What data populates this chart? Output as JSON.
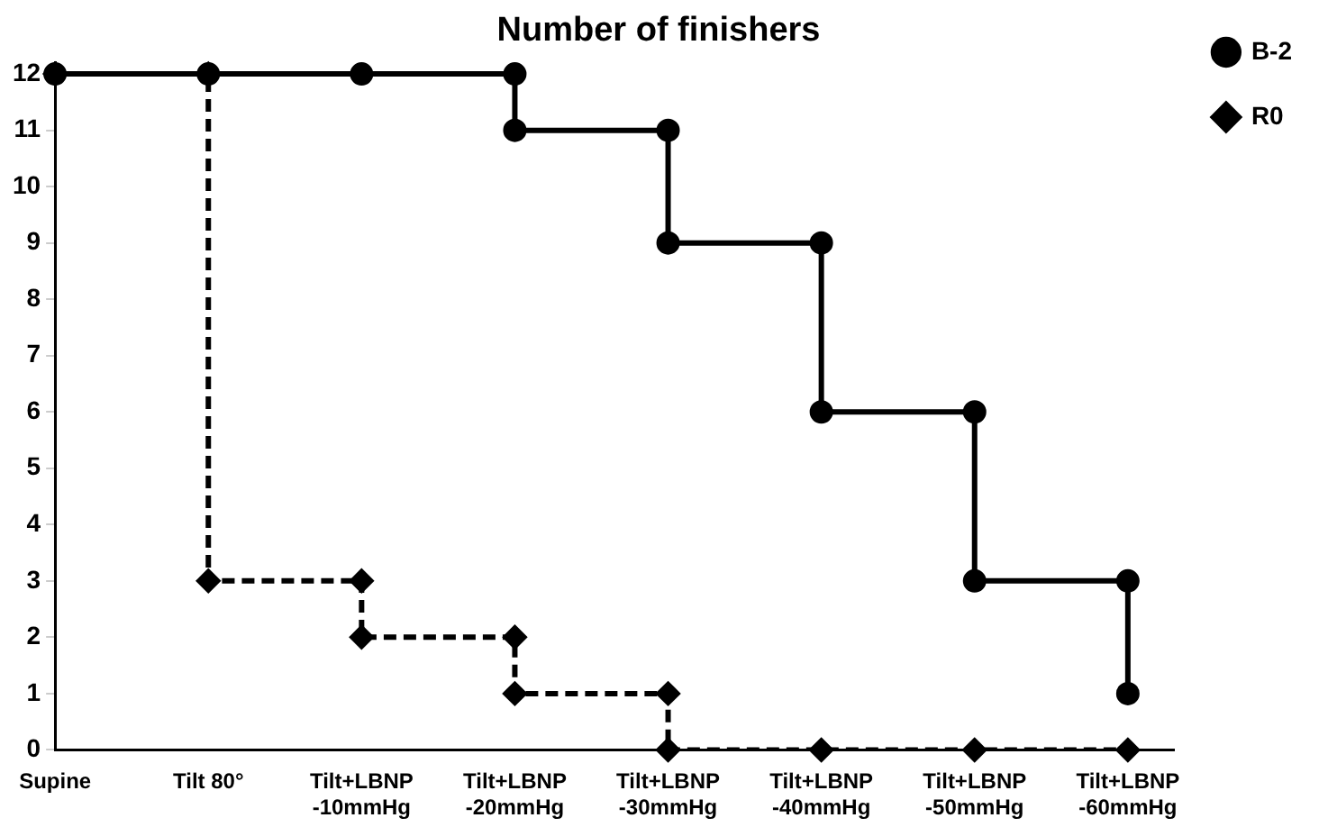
{
  "chart_data": {
    "type": "line",
    "title": "Number of finishers",
    "categories": [
      "Supine",
      "Tilt 80°",
      "Tilt+LBNP\n-10mmHg",
      "Tilt+LBNP\n-20mmHg",
      "Tilt+LBNP\n-30mmHg",
      "Tilt+LBNP\n-40mmHg",
      "Tilt+LBNP\n-50mmHg",
      "Tilt+LBNP\n-60mmHg"
    ],
    "ylim": [
      0,
      12.2
    ],
    "yticks": [
      0,
      1,
      2,
      3,
      4,
      5,
      6,
      7,
      8,
      9,
      10,
      11,
      12
    ],
    "grid": false,
    "legend": "top right",
    "series": [
      {
        "name": "B-2",
        "color": "#000000",
        "marker": "circle",
        "line_style": "solid",
        "x": [
          "Supine",
          "Tilt 80°",
          "Tilt+LBNP\n-10mmHg",
          "Tilt+LBNP\n-20mmHg",
          "Tilt+LBNP\n-20mmHg",
          "Tilt+LBNP\n-30mmHg",
          "Tilt+LBNP\n-30mmHg",
          "Tilt+LBNP\n-40mmHg",
          "Tilt+LBNP\n-40mmHg",
          "Tilt+LBNP\n-50mmHg",
          "Tilt+LBNP\n-50mmHg",
          "Tilt+LBNP\n-60mmHg",
          "Tilt+LBNP\n-60mmHg"
        ],
        "values": [
          12,
          12,
          12,
          12,
          11,
          11,
          9,
          9,
          6,
          6,
          3,
          3,
          1
        ]
      },
      {
        "name": "R0",
        "color": "#000000",
        "marker": "diamond",
        "line_style": "dashed",
        "x": [
          "Supine",
          "Tilt 80°",
          "Tilt 80°",
          "Tilt+LBNP\n-10mmHg",
          "Tilt+LBNP\n-10mmHg",
          "Tilt+LBNP\n-20mmHg",
          "Tilt+LBNP\n-20mmHg",
          "Tilt+LBNP\n-30mmHg",
          "Tilt+LBNP\n-30mmHg",
          "Tilt+LBNP\n-40mmHg",
          "Tilt+LBNP\n-50mmHg",
          "Tilt+LBNP\n-60mmHg"
        ],
        "values": [
          12,
          12,
          3,
          3,
          2,
          2,
          1,
          1,
          0,
          0,
          0,
          0
        ]
      }
    ]
  }
}
